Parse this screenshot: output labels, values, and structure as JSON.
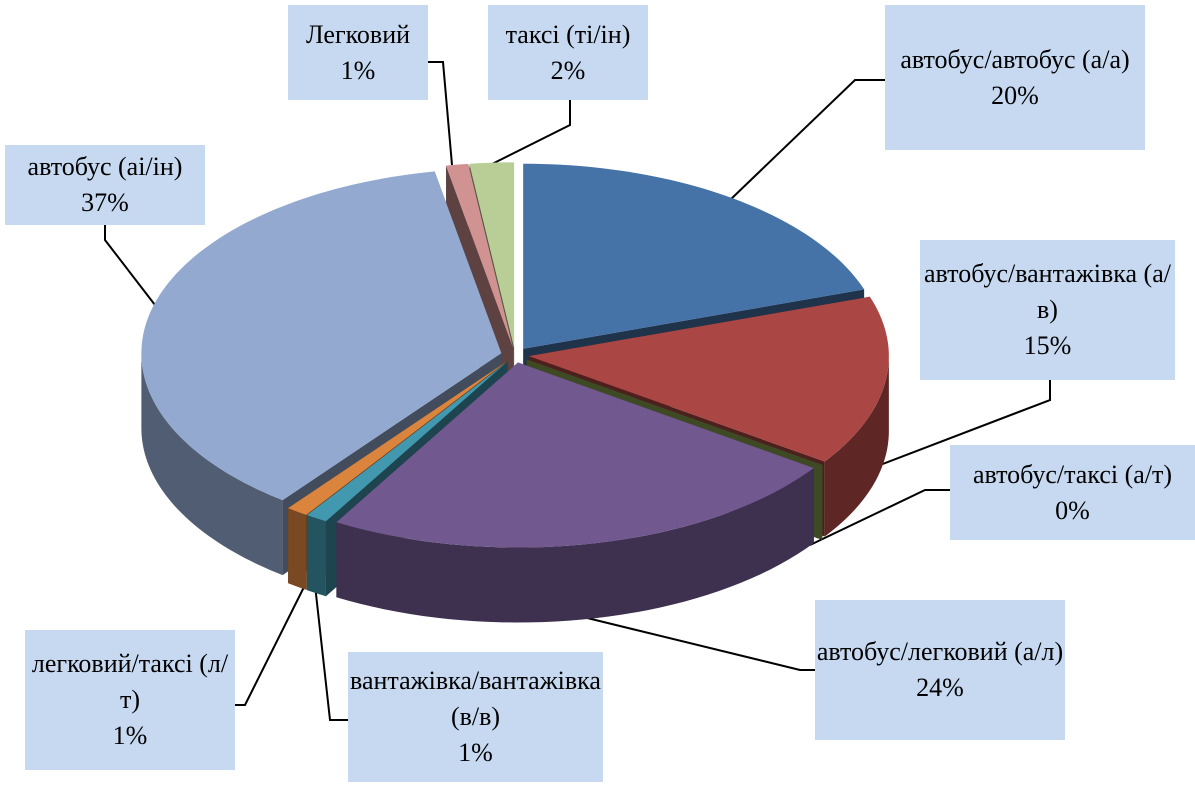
{
  "chart_data": {
    "type": "pie3d",
    "categories": [
      "автобус/автобус (а/а)",
      "автобус/вантажівка (а/в)",
      "автобус/таксі (а/т)",
      "автобус/легковий (а/л)",
      "вантажівка/вантажівка (в/в)",
      "легковий/таксі (л/т)",
      "автобус (аі/ін)",
      "Легковий",
      "таксі (ті/ін)"
    ],
    "values": [
      20,
      15,
      0,
      24,
      1,
      1,
      37,
      1,
      2
    ],
    "value_labels": [
      "20%",
      "15%",
      "0%",
      "24%",
      "1%",
      "1%",
      "37%",
      "1%",
      "2%"
    ],
    "colors": [
      "#4572a7",
      "#aa4643",
      "#89a54e",
      "#71588f",
      "#4198af",
      "#db843d",
      "#93a9cf",
      "#d19392",
      "#b9cd96"
    ]
  }
}
